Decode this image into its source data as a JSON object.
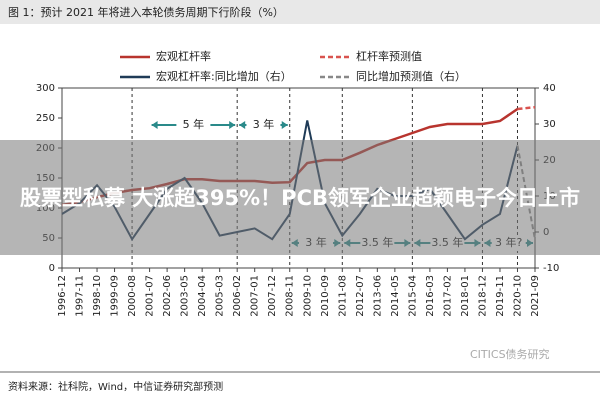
{
  "chart_data": {
    "type": "line",
    "title": "图 1：预计 2021 年将进入本轮债务周期下行阶段（%）",
    "categories": [
      "1996-12",
      "1997-11",
      "1998-10",
      "1999-09",
      "2000-08",
      "2001-07",
      "2002-06",
      "2003-05",
      "2004-04",
      "2005-03",
      "2006-02",
      "2007-01",
      "2007-12",
      "2008-11",
      "2009-10",
      "2010-09",
      "2011-08",
      "2012-07",
      "2013-06",
      "2014-05",
      "2015-04",
      "2016-03",
      "2017-02",
      "2018-01",
      "2018-12",
      "2019-11",
      "2020-10",
      "2021-09"
    ],
    "series": [
      {
        "name": "宏观杠杆率",
        "color": "#b8342e",
        "dash": false,
        "axis": "y",
        "values": [
          105,
          110,
          118,
          125,
          130,
          133,
          140,
          148,
          148,
          145,
          145,
          145,
          142,
          143,
          175,
          180,
          180,
          192,
          205,
          215,
          225,
          235,
          240,
          240,
          240,
          245,
          265,
          null
        ]
      },
      {
        "name": "杠杆率预测值",
        "color": "#d9534f",
        "dash": true,
        "axis": "y",
        "values": [
          null,
          null,
          null,
          null,
          null,
          null,
          null,
          null,
          null,
          null,
          null,
          null,
          null,
          null,
          null,
          null,
          null,
          null,
          null,
          null,
          null,
          null,
          null,
          null,
          null,
          null,
          265,
          268
        ]
      },
      {
        "name": "宏观杠杆率:同比增加（右）",
        "color": "#1f3b57",
        "dash": false,
        "axis": "y2",
        "values": [
          5,
          8,
          13,
          7,
          -2,
          5,
          12,
          15,
          8,
          -1,
          0,
          1,
          -2,
          5,
          31,
          8,
          -1,
          5,
          12,
          10,
          10,
          12,
          5,
          -2,
          2,
          5,
          24,
          null
        ]
      },
      {
        "name": "同比增加预测值（右）",
        "color": "#888888",
        "dash": true,
        "axis": "y2",
        "values": [
          null,
          null,
          null,
          null,
          null,
          null,
          null,
          null,
          null,
          null,
          null,
          null,
          null,
          null,
          null,
          null,
          null,
          null,
          null,
          null,
          null,
          null,
          null,
          null,
          null,
          null,
          24,
          -2
        ]
      }
    ],
    "ylim": [
      0,
      300
    ],
    "yticks": [
      0,
      50,
      100,
      150,
      200,
      250,
      300
    ],
    "y2lim": [
      -10,
      40
    ],
    "y2ticks": [
      -10,
      0,
      10,
      20,
      30,
      40
    ],
    "annotations": [
      "5 年",
      "3 年",
      "3 年",
      "3.5 年",
      "3.5 年",
      "3 年?"
    ],
    "source": "资料来源：社科院，Wind，中信证券研究部预测",
    "watermark": "CITICS债务研究",
    "overlay": "股票型私募 大涨超395%！PCB领军企业超颖电子今日上市"
  }
}
